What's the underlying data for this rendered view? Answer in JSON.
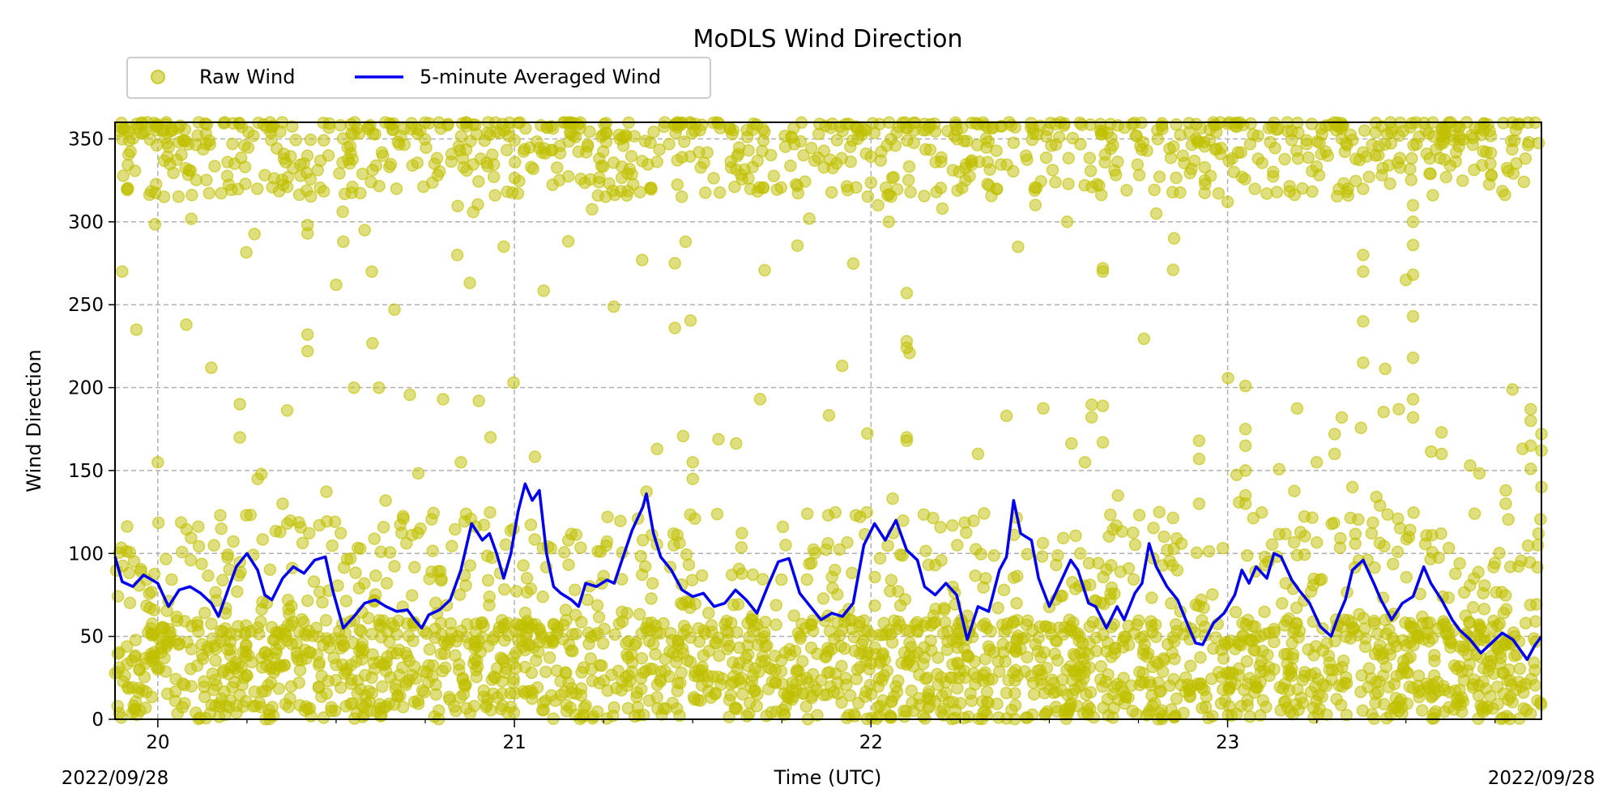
{
  "chart_data": {
    "type": "scatter",
    "title": "MoDLS Wind Direction",
    "xlabel": "Time (UTC)",
    "ylabel": "Wind Direction",
    "xlim": [
      19.88,
      23.88
    ],
    "ylim": [
      0,
      360
    ],
    "yticks": [
      0,
      50,
      100,
      150,
      200,
      250,
      300,
      350
    ],
    "xticks": [
      {
        "value": 20,
        "label": "20"
      },
      {
        "value": 21,
        "label": "21"
      },
      {
        "value": 22,
        "label": "22"
      },
      {
        "value": 23,
        "label": "23"
      }
    ],
    "date_left": "2022/09/28",
    "date_right": "2022/09/28",
    "grid": true,
    "legend_position": "top-left, above plot",
    "series": [
      {
        "name": "Raw Wind",
        "type": "scatter",
        "color": "#bfbf00",
        "outliers": [
          [
            19.9,
            270
          ],
          [
            20.0,
            155
          ],
          [
            20.08,
            238
          ],
          [
            20.15,
            212
          ],
          [
            20.23,
            190
          ],
          [
            20.23,
            170
          ],
          [
            20.28,
            145
          ],
          [
            20.35,
            130
          ],
          [
            20.42,
            298
          ],
          [
            20.42,
            293
          ],
          [
            20.42,
            232
          ],
          [
            20.42,
            222
          ],
          [
            20.5,
            262
          ],
          [
            20.52,
            288
          ],
          [
            20.55,
            200
          ],
          [
            20.58,
            295
          ],
          [
            20.6,
            270
          ],
          [
            20.62,
            200
          ],
          [
            20.8,
            193
          ],
          [
            20.84,
            280
          ],
          [
            20.85,
            155
          ],
          [
            20.9,
            192
          ],
          [
            20.97,
            285
          ],
          [
            21.05,
            57
          ],
          [
            21.4,
            163
          ],
          [
            21.45,
            275
          ],
          [
            21.45,
            236
          ],
          [
            21.48,
            288
          ],
          [
            21.5,
            155
          ],
          [
            21.5,
            145
          ],
          [
            21.88,
            123
          ],
          [
            22.02,
            310
          ],
          [
            22.05,
            300
          ],
          [
            22.1,
            257
          ],
          [
            22.1,
            228
          ],
          [
            22.1,
            224
          ],
          [
            22.1,
            170
          ],
          [
            22.1,
            168
          ],
          [
            22.2,
            308
          ],
          [
            22.3,
            160
          ],
          [
            22.38,
            183
          ],
          [
            22.55,
            300
          ],
          [
            22.6,
            155
          ],
          [
            22.65,
            272
          ],
          [
            22.65,
            270
          ],
          [
            22.65,
            189
          ],
          [
            22.65,
            167
          ],
          [
            22.8,
            305
          ],
          [
            22.85,
            290
          ],
          [
            22.92,
            168
          ],
          [
            22.92,
            157
          ],
          [
            22.92,
            130
          ],
          [
            23.0,
            312
          ],
          [
            23.05,
            201
          ],
          [
            23.05,
            175
          ],
          [
            23.05,
            165
          ],
          [
            23.05,
            150
          ],
          [
            23.05,
            135
          ],
          [
            23.05,
            130
          ],
          [
            23.25,
            155
          ],
          [
            23.3,
            172
          ],
          [
            23.3,
            160
          ],
          [
            23.32,
            182
          ],
          [
            23.35,
            140
          ],
          [
            23.38,
            280
          ],
          [
            23.38,
            270
          ],
          [
            23.38,
            240
          ],
          [
            23.38,
            215
          ],
          [
            23.48,
            187
          ],
          [
            23.5,
            265
          ],
          [
            23.52,
            310
          ],
          [
            23.52,
            300
          ],
          [
            23.52,
            286
          ],
          [
            23.52,
            268
          ],
          [
            23.52,
            243
          ],
          [
            23.52,
            218
          ],
          [
            23.52,
            193
          ],
          [
            23.52,
            182
          ],
          [
            23.6,
            173
          ],
          [
            23.6,
            160
          ],
          [
            23.68,
            153
          ],
          [
            23.78,
            138
          ],
          [
            23.78,
            130
          ],
          [
            23.85,
            187
          ],
          [
            23.85,
            180
          ],
          [
            23.85,
            165
          ],
          [
            23.85,
            151
          ],
          [
            23.87,
            105
          ],
          [
            23.88,
            172
          ],
          [
            23.88,
            162
          ],
          [
            23.88,
            140
          ]
        ]
      },
      {
        "name": "5-minute Averaged Wind",
        "type": "line",
        "color": "#0000ee",
        "points": [
          [
            19.88,
            98
          ],
          [
            19.9,
            83
          ],
          [
            19.93,
            80
          ],
          [
            19.96,
            87
          ],
          [
            20.0,
            82
          ],
          [
            20.03,
            68
          ],
          [
            20.06,
            78
          ],
          [
            20.09,
            80
          ],
          [
            20.12,
            76
          ],
          [
            20.15,
            70
          ],
          [
            20.17,
            62
          ],
          [
            20.2,
            80
          ],
          [
            20.22,
            92
          ],
          [
            20.25,
            100
          ],
          [
            20.28,
            90
          ],
          [
            20.3,
            75
          ],
          [
            20.32,
            72
          ],
          [
            20.35,
            85
          ],
          [
            20.38,
            92
          ],
          [
            20.41,
            88
          ],
          [
            20.44,
            96
          ],
          [
            20.47,
            98
          ],
          [
            20.49,
            78
          ],
          [
            20.52,
            55
          ],
          [
            20.55,
            62
          ],
          [
            20.58,
            70
          ],
          [
            20.61,
            72
          ],
          [
            20.64,
            68
          ],
          [
            20.67,
            65
          ],
          [
            20.7,
            66
          ],
          [
            20.72,
            60
          ],
          [
            20.74,
            55
          ],
          [
            20.76,
            63
          ],
          [
            20.79,
            66
          ],
          [
            20.82,
            72
          ],
          [
            20.85,
            90
          ],
          [
            20.88,
            118
          ],
          [
            20.91,
            108
          ],
          [
            20.93,
            112
          ],
          [
            20.95,
            100
          ],
          [
            20.97,
            85
          ],
          [
            20.99,
            100
          ],
          [
            21.01,
            125
          ],
          [
            21.03,
            142
          ],
          [
            21.05,
            132
          ],
          [
            21.07,
            138
          ],
          [
            21.09,
            100
          ],
          [
            21.11,
            80
          ],
          [
            21.13,
            76
          ],
          [
            21.16,
            72
          ],
          [
            21.18,
            68
          ],
          [
            21.2,
            82
          ],
          [
            21.23,
            80
          ],
          [
            21.26,
            84
          ],
          [
            21.28,
            82
          ],
          [
            21.3,
            95
          ],
          [
            21.33,
            114
          ],
          [
            21.36,
            128
          ],
          [
            21.37,
            136
          ],
          [
            21.39,
            112
          ],
          [
            21.41,
            98
          ],
          [
            21.44,
            90
          ],
          [
            21.47,
            78
          ],
          [
            21.5,
            74
          ],
          [
            21.53,
            76
          ],
          [
            21.56,
            68
          ],
          [
            21.59,
            70
          ],
          [
            21.62,
            78
          ],
          [
            21.65,
            72
          ],
          [
            21.68,
            64
          ],
          [
            21.71,
            80
          ],
          [
            21.74,
            95
          ],
          [
            21.77,
            97
          ],
          [
            21.8,
            76
          ],
          [
            21.83,
            68
          ],
          [
            21.86,
            60
          ],
          [
            21.89,
            64
          ],
          [
            21.92,
            62
          ],
          [
            21.95,
            70
          ],
          [
            21.98,
            105
          ],
          [
            22.01,
            118
          ],
          [
            22.04,
            108
          ],
          [
            22.07,
            120
          ],
          [
            22.1,
            102
          ],
          [
            22.13,
            96
          ],
          [
            22.15,
            80
          ],
          [
            22.18,
            75
          ],
          [
            22.21,
            82
          ],
          [
            22.24,
            75
          ],
          [
            22.27,
            48
          ],
          [
            22.3,
            68
          ],
          [
            22.33,
            65
          ],
          [
            22.36,
            90
          ],
          [
            22.38,
            98
          ],
          [
            22.4,
            132
          ],
          [
            22.42,
            112
          ],
          [
            22.45,
            108
          ],
          [
            22.47,
            85
          ],
          [
            22.5,
            68
          ],
          [
            22.53,
            82
          ],
          [
            22.56,
            96
          ],
          [
            22.58,
            90
          ],
          [
            22.61,
            70
          ],
          [
            22.63,
            68
          ],
          [
            22.66,
            55
          ],
          [
            22.69,
            68
          ],
          [
            22.71,
            60
          ],
          [
            22.74,
            76
          ],
          [
            22.76,
            82
          ],
          [
            22.78,
            106
          ],
          [
            22.8,
            92
          ],
          [
            22.83,
            80
          ],
          [
            22.86,
            72
          ],
          [
            22.89,
            56
          ],
          [
            22.91,
            46
          ],
          [
            22.93,
            45
          ],
          [
            22.96,
            58
          ],
          [
            22.99,
            64
          ],
          [
            23.02,
            75
          ],
          [
            23.04,
            90
          ],
          [
            23.06,
            82
          ],
          [
            23.08,
            92
          ],
          [
            23.11,
            85
          ],
          [
            23.13,
            100
          ],
          [
            23.15,
            98
          ],
          [
            23.18,
            84
          ],
          [
            23.2,
            78
          ],
          [
            23.23,
            70
          ],
          [
            23.26,
            56
          ],
          [
            23.29,
            50
          ],
          [
            23.31,
            62
          ],
          [
            23.33,
            72
          ],
          [
            23.35,
            90
          ],
          [
            23.38,
            96
          ],
          [
            23.41,
            82
          ],
          [
            23.43,
            72
          ],
          [
            23.46,
            60
          ],
          [
            23.49,
            70
          ],
          [
            23.52,
            74
          ],
          [
            23.55,
            92
          ],
          [
            23.57,
            82
          ],
          [
            23.6,
            72
          ],
          [
            23.63,
            60
          ],
          [
            23.65,
            54
          ],
          [
            23.68,
            48
          ],
          [
            23.71,
            40
          ],
          [
            23.74,
            46
          ],
          [
            23.77,
            52
          ],
          [
            23.8,
            48
          ],
          [
            23.82,
            42
          ],
          [
            23.84,
            36
          ],
          [
            23.86,
            44
          ],
          [
            23.88,
            50
          ]
        ]
      }
    ]
  }
}
